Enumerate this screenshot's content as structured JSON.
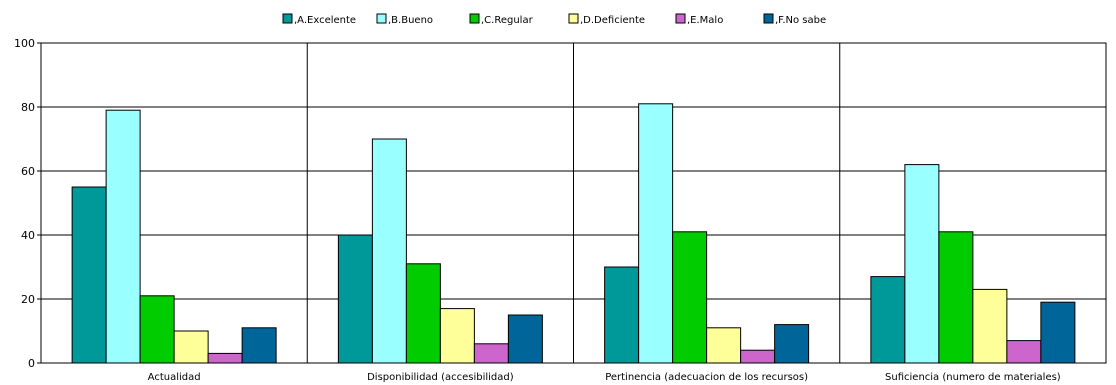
{
  "chart_data": {
    "type": "bar",
    "title": "",
    "xlabel": "",
    "ylabel": "",
    "categories": [
      "Actualidad",
      "Disponibilidad (accesibilidad)",
      "Pertinencia (adecuacion de los recursos)",
      "Suficiencia (numero de materiales)"
    ],
    "series": [
      {
        "name": ",A.Excelente",
        "color": "#009999",
        "values": [
          55,
          40,
          30,
          27
        ]
      },
      {
        "name": ",B.Bueno",
        "color": "#99ffff",
        "values": [
          79,
          70,
          81,
          62
        ]
      },
      {
        "name": ",C.Regular",
        "color": "#00cc00",
        "values": [
          21,
          31,
          41,
          41
        ]
      },
      {
        "name": ",D.Deficiente",
        "color": "#ffff99",
        "values": [
          10,
          17,
          11,
          23
        ]
      },
      {
        "name": ",E.Malo",
        "color": "#cc66cc",
        "values": [
          3,
          6,
          4,
          7
        ]
      },
      {
        "name": ",F.No sabe",
        "color": "#006699",
        "values": [
          11,
          15,
          12,
          19
        ]
      }
    ],
    "ylim": [
      0,
      100
    ],
    "yticks": [
      0,
      20,
      40,
      60,
      80,
      100
    ],
    "grid": true,
    "legend_position": "top"
  }
}
